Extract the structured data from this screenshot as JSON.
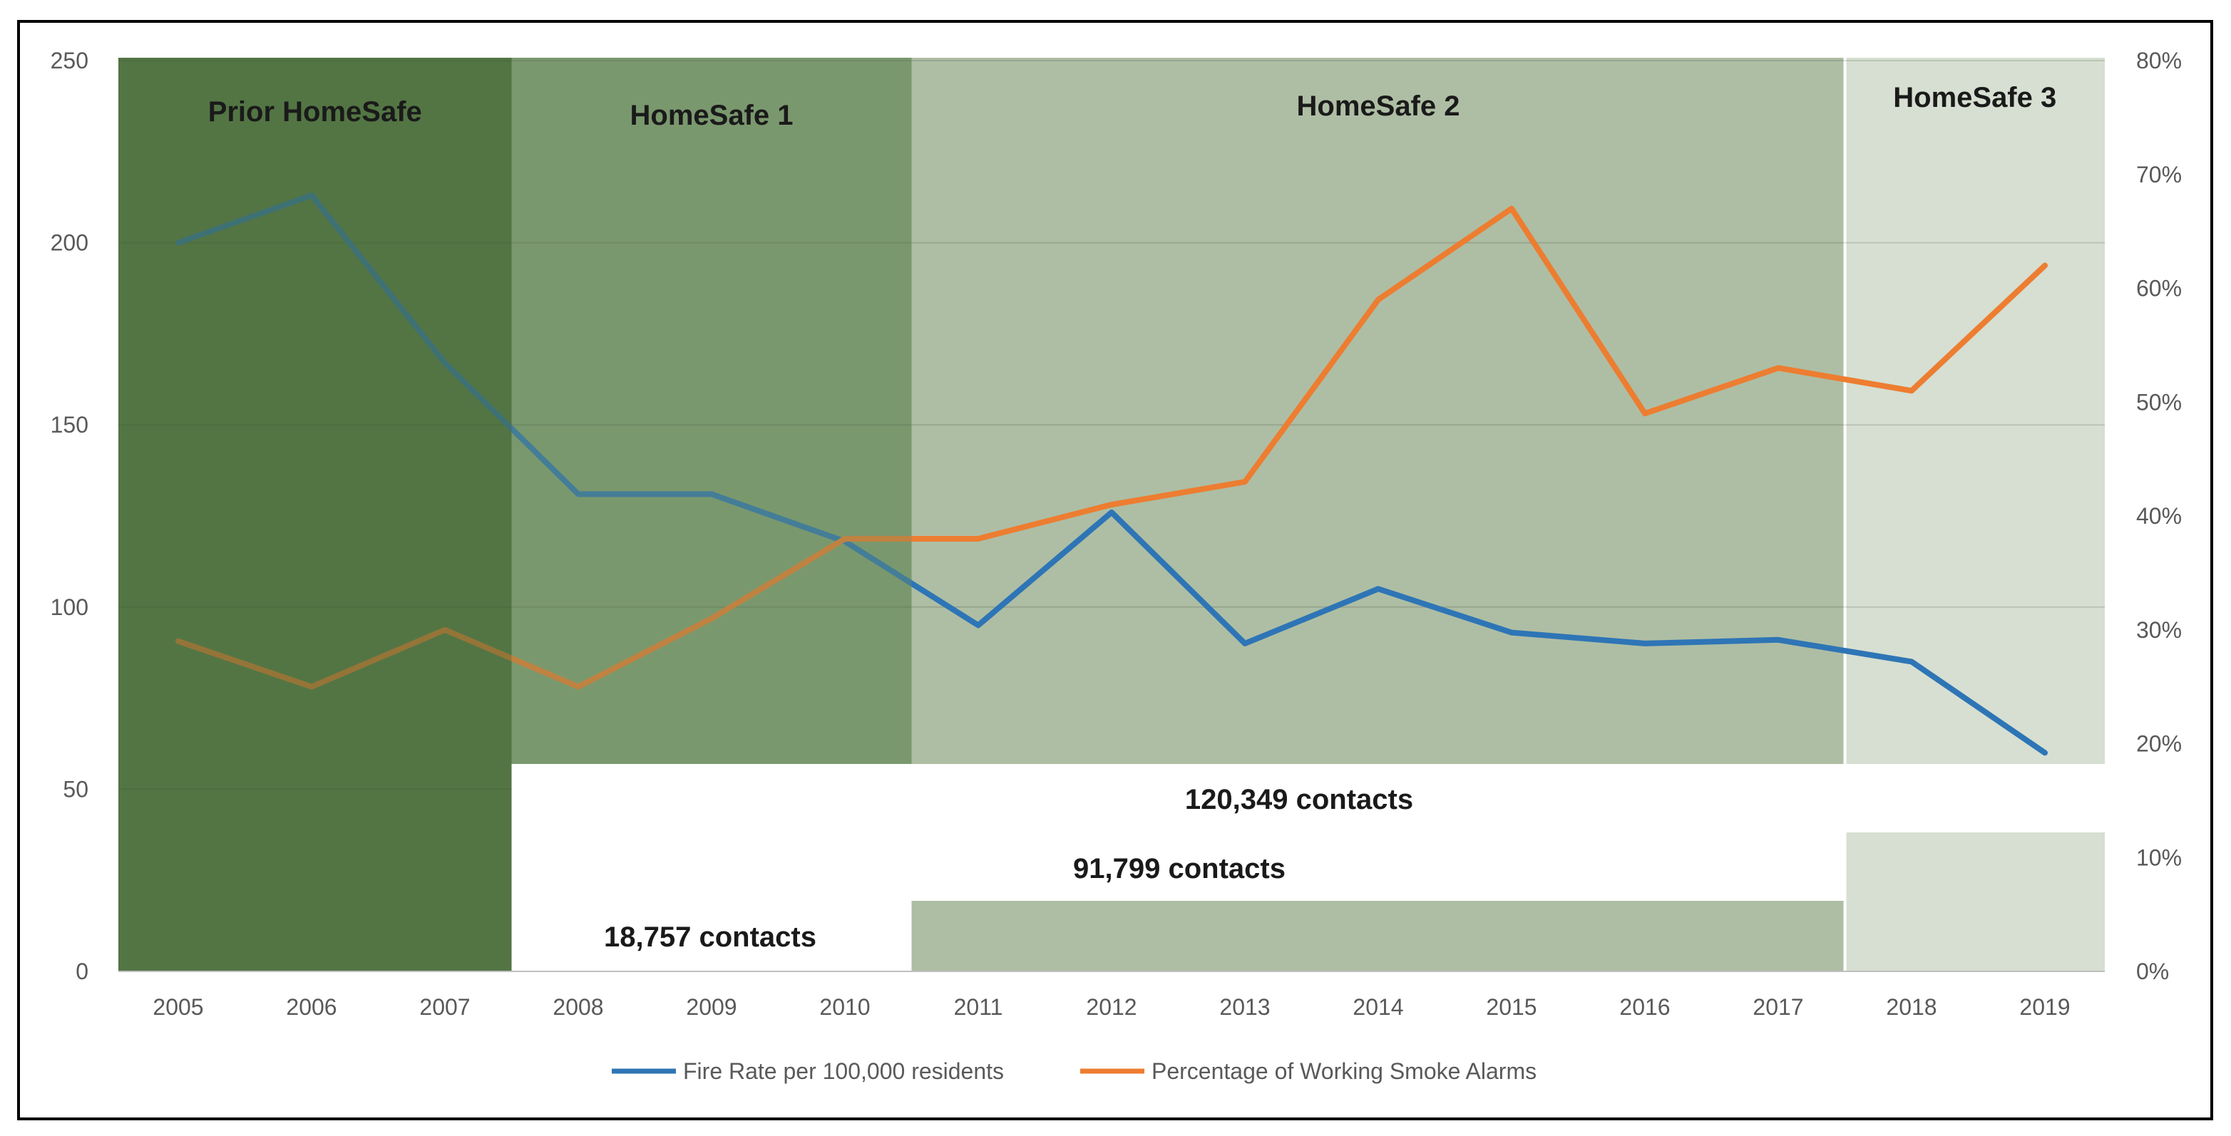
{
  "chart_data": {
    "type": "line",
    "title": "",
    "xlabel": "",
    "ylabel": "",
    "categories": [
      "2005",
      "2006",
      "2007",
      "2008",
      "2009",
      "2010",
      "2011",
      "2012",
      "2013",
      "2014",
      "2015",
      "2016",
      "2017",
      "2018",
      "2019"
    ],
    "y_left": {
      "range": [
        0,
        250
      ],
      "ticks": [
        0,
        50,
        100,
        150,
        200,
        250
      ],
      "tick_labels": [
        "0",
        "50",
        "100",
        "150",
        "200",
        "250"
      ]
    },
    "y_right": {
      "range": [
        0,
        80
      ],
      "ticks": [
        0,
        10,
        20,
        30,
        40,
        50,
        60,
        70,
        80
      ],
      "tick_labels": [
        "0%",
        "10%",
        "20%",
        "30%",
        "40%",
        "50%",
        "60%",
        "70%",
        "80%"
      ]
    },
    "grid": true,
    "legend_position": "bottom",
    "series": [
      {
        "name": "Fire Rate per 100,000 residents",
        "axis": "left",
        "color": "#2e75b6",
        "values": [
          200,
          213,
          167,
          131,
          131,
          118,
          95,
          126,
          90,
          105,
          93,
          90,
          91,
          85,
          60
        ]
      },
      {
        "name": "Percentage of Working Smoke Alarms",
        "axis": "right",
        "color": "#ed7d31",
        "values": [
          29,
          25,
          30,
          25,
          31,
          38,
          38,
          41,
          43,
          59,
          67,
          49,
          53,
          51,
          62
        ]
      }
    ],
    "phases": [
      {
        "label": "Prior HomeSafe",
        "start": "2005",
        "end": "2007",
        "color": "#5b7f4c"
      },
      {
        "label": "HomeSafe 1",
        "start": "2008",
        "end": "2010",
        "color": "#829e76"
      },
      {
        "label": "HomeSafe 2",
        "start": "2011",
        "end": "2017",
        "color": "#aebea4"
      },
      {
        "label": "HomeSafe 3",
        "start": "2018",
        "end": "2019",
        "color": "#d6dfd1"
      }
    ],
    "contact_labels": [
      {
        "label": "120,349 contacts",
        "start": "2008",
        "end": "2019"
      },
      {
        "label": "91,799 contacts",
        "start": "2008",
        "end": "2017"
      },
      {
        "label": "18,757 contacts",
        "start": "2008",
        "end": "2010"
      }
    ]
  }
}
